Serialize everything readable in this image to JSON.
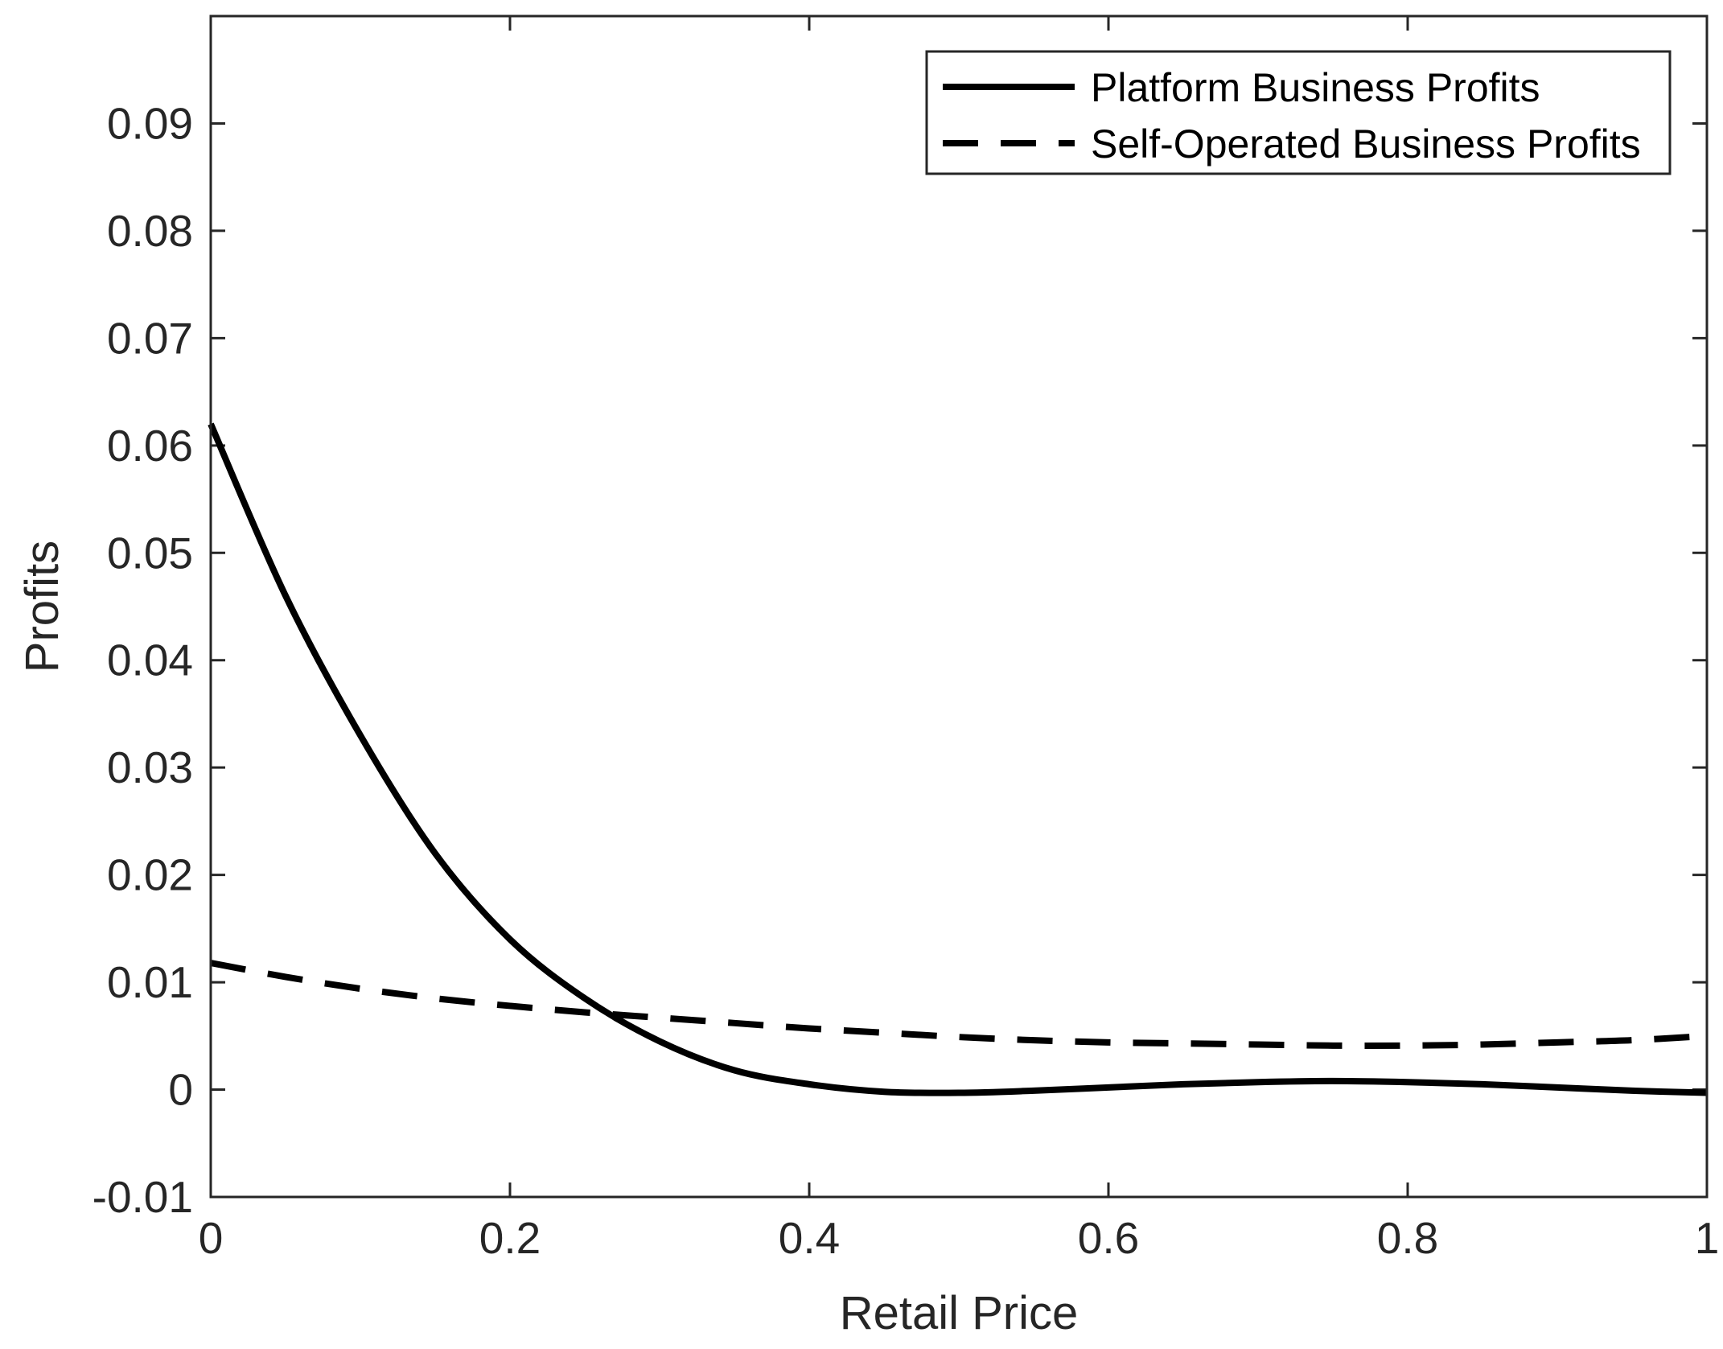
{
  "chart_data": {
    "type": "line",
    "xlabel": "Retail Price",
    "ylabel": "Profits",
    "xlim": [
      0,
      1
    ],
    "ylim": [
      -0.01,
      0.1
    ],
    "x_ticks": [
      0,
      0.2,
      0.4,
      0.6,
      0.8,
      1
    ],
    "x_tick_labels": [
      "0",
      "0.2",
      "0.4",
      "0.6",
      "0.8",
      "1"
    ],
    "y_ticks": [
      -0.01,
      0,
      0.01,
      0.02,
      0.03,
      0.04,
      0.05,
      0.06,
      0.07,
      0.08,
      0.09
    ],
    "y_tick_labels": [
      "-0.01",
      "0",
      "0.01",
      "0.02",
      "0.03",
      "0.04",
      "0.05",
      "0.06",
      "0.07",
      "0.08",
      "0.09"
    ],
    "grid": false,
    "legend_position": "top-right",
    "x": [
      0,
      0.05,
      0.1,
      0.15,
      0.2,
      0.25,
      0.3,
      0.35,
      0.4,
      0.45,
      0.5,
      0.55,
      0.6,
      0.65,
      0.7,
      0.75,
      0.8,
      0.85,
      0.9,
      0.95,
      1
    ],
    "series": [
      {
        "name": "Platform Business Profits",
        "style": "solid",
        "color": "#000000",
        "values": [
          0.062,
          0.046,
          0.033,
          0.022,
          0.014,
          0.0085,
          0.0045,
          0.0018,
          0.0005,
          -0.0002,
          -0.0003,
          -0.0001,
          0.0002,
          0.0005,
          0.0007,
          0.0008,
          0.0007,
          0.0005,
          0.0002,
          -0.0001,
          -0.0003
        ]
      },
      {
        "name": "Self-Operated Business Profits",
        "style": "dashed",
        "color": "#000000",
        "values": [
          0.0118,
          0.0105,
          0.0094,
          0.0085,
          0.0078,
          0.0072,
          0.0067,
          0.0062,
          0.0057,
          0.0053,
          0.0049,
          0.0046,
          0.0044,
          0.0043,
          0.0042,
          0.0041,
          0.0041,
          0.0042,
          0.0044,
          0.0046,
          0.005
        ]
      }
    ]
  }
}
